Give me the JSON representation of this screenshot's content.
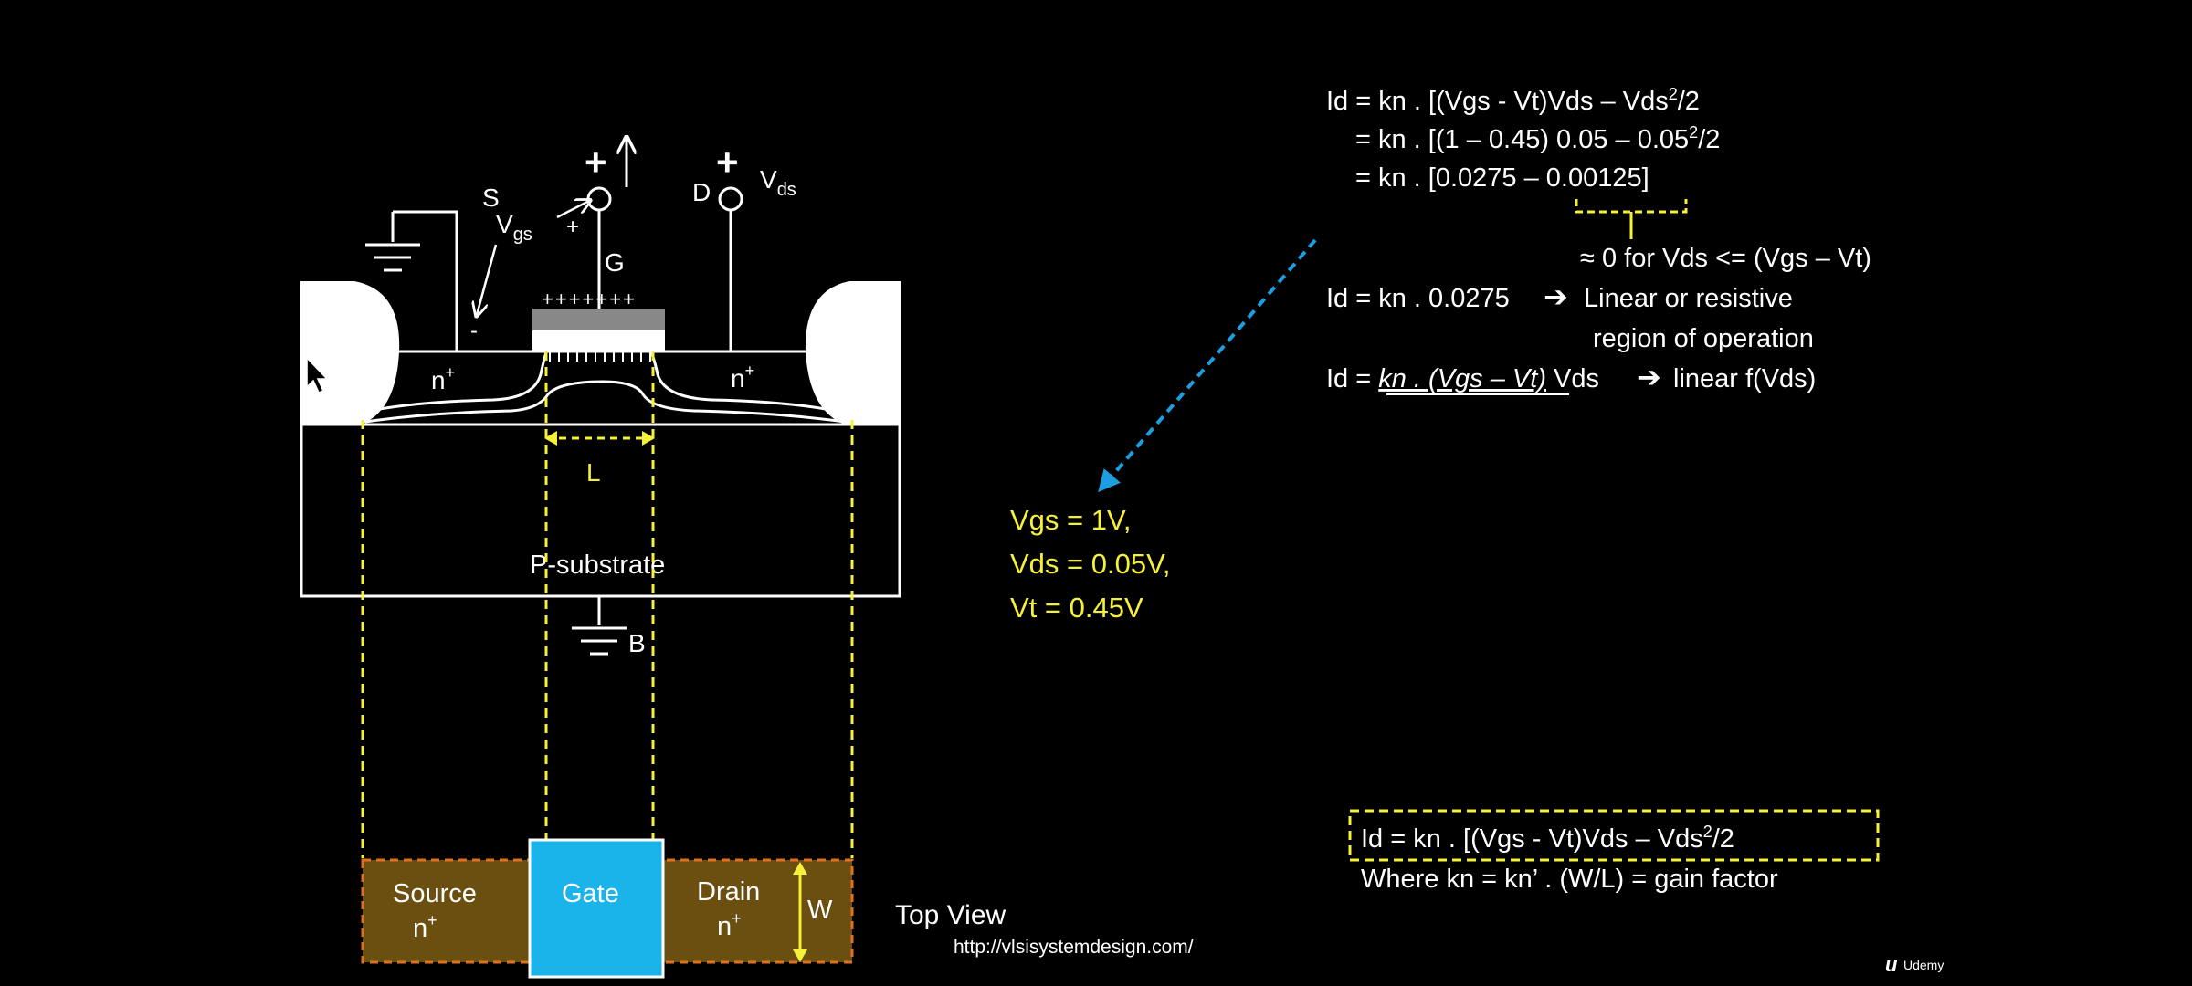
{
  "colors": {
    "background": "#000000",
    "text": "#ffffff",
    "highlight": "#f5f03a",
    "gate_top_view": "#1ab4ea",
    "diffusion_top_view": "#6b4f10",
    "diffusion_border": "#e0701e",
    "arrow": "#1c9ee0"
  },
  "cross_section": {
    "source_label": "S",
    "gate_label": "G",
    "drain_label": "D",
    "vgs_label_main": "V",
    "vgs_label_sub": "gs",
    "vds_label_main": "V",
    "vds_label_sub": "ds",
    "plus_sign": "+",
    "minus_sign": "-",
    "gate_charges": "+++++++",
    "n_plus_main": "n",
    "n_plus_sup": "+",
    "length_label": "L",
    "substrate_label": "P-substrate",
    "body_label": "B"
  },
  "top_view": {
    "source_line1": "Source",
    "source_line2_main": "n",
    "source_line2_sup": "+",
    "gate_label": "Gate",
    "drain_line1": "Drain",
    "drain_line2_main": "n",
    "drain_line2_sup": "+",
    "width_label": "W",
    "caption": "Top View"
  },
  "website_url": "http://vlsisystemdesign.com/",
  "watermark": "Udemy",
  "givens": {
    "line1": "Vgs = 1V,",
    "line2": "Vds = 0.05V,",
    "line3": "Vt = 0.45V"
  },
  "equations": {
    "eq1_a": "Id = kn . [(Vgs - Vt)Vds – Vds",
    "eq1_sup": "2",
    "eq1_b": "/2",
    "eq2_a": "= kn . [(1 – 0.45) 0.05 – 0.05",
    "eq2_sup": "2",
    "eq2_b": "/2",
    "eq3": "= kn . [0.0275 – 0.00125]",
    "approx_note": "≈ 0 for Vds <= (Vgs – Vt)",
    "eq4_a": "Id = kn . 0.0275",
    "eq4_b": "Linear or resistive",
    "eq4_c": "region of operation",
    "eq5_a": "Id = ",
    "eq5_u": "kn . (Vgs – Vt)",
    "eq5_b": " Vds",
    "eq5_c": "linear f(Vds)"
  },
  "summary_box": {
    "line1_a": "Id = kn . [(Vgs - Vt)Vds – Vds",
    "line1_sup": "2",
    "line1_b": "/2",
    "line2": "Where kn = kn’ . (W/L) = gain factor"
  }
}
